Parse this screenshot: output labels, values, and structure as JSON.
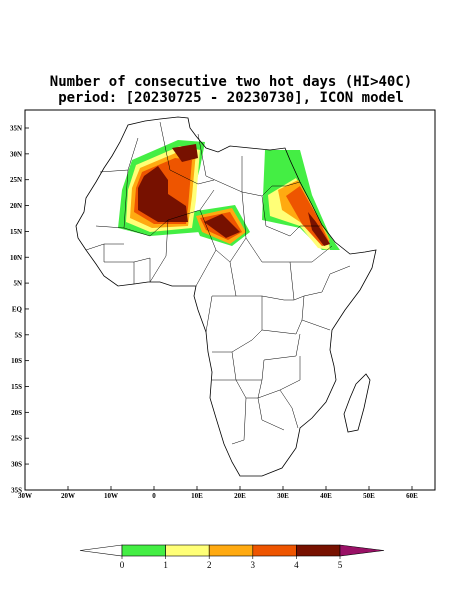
{
  "map": {
    "title": "Number of consecutive two hot days (HI>40C)",
    "subtitle": "period: [20230725 - 20230730], ICON model",
    "lat_ticks": [
      {
        "value": 35,
        "label": "35N"
      },
      {
        "value": 30,
        "label": "30N"
      },
      {
        "value": 25,
        "label": "25N"
      },
      {
        "value": 20,
        "label": "20N"
      },
      {
        "value": 15,
        "label": "15N"
      },
      {
        "value": 10,
        "label": "10N"
      },
      {
        "value": 5,
        "label": "5N"
      },
      {
        "value": 0,
        "label": "EQ"
      },
      {
        "value": -5,
        "label": "5S"
      },
      {
        "value": -10,
        "label": "10S"
      },
      {
        "value": -15,
        "label": "15S"
      },
      {
        "value": -20,
        "label": "20S"
      },
      {
        "value": -25,
        "label": "25S"
      },
      {
        "value": -30,
        "label": "30S"
      },
      {
        "value": -35,
        "label": "35S"
      }
    ],
    "lon_ticks": [
      {
        "value": -30,
        "label": "30W"
      },
      {
        "value": -20,
        "label": "20W"
      },
      {
        "value": -10,
        "label": "10W"
      },
      {
        "value": 0,
        "label": "0"
      },
      {
        "value": 10,
        "label": "10E"
      },
      {
        "value": 20,
        "label": "20E"
      },
      {
        "value": 30,
        "label": "30E"
      },
      {
        "value": 40,
        "label": "40E"
      },
      {
        "value": 50,
        "label": "50E"
      },
      {
        "value": 60,
        "label": "60E"
      }
    ],
    "colorbar": {
      "levels": [
        0,
        1,
        2,
        3,
        4,
        5
      ],
      "colors": [
        "#44ee44",
        "#ffff77",
        "#ffaa11",
        "#ee5500",
        "#771100"
      ],
      "under_color": "#ffffff",
      "over_color": "#991166"
    }
  }
}
